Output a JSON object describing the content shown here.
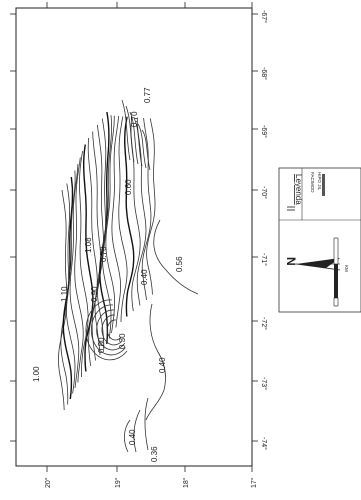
{
  "map": {
    "lon_labels": [
      "-67°",
      "-68°",
      "-69°",
      "-70°",
      "-71°",
      "-72°",
      "-73°",
      "-74°"
    ],
    "lat_labels": [
      "20°",
      "19°",
      "18°",
      "17°"
    ],
    "contour_labels": [
      "0.77",
      "0.70",
      "0.60",
      "1.08",
      "0.70",
      "0.56",
      "0.40",
      "1.10",
      "0.90",
      "0.80",
      "0.30",
      "0.40",
      "1.00",
      "0.40",
      "0.36"
    ]
  },
  "legend": {
    "title": "Leyenda",
    "lines": [
      "FACIMOD",
      "HIPO JIL"
    ]
  },
  "north_arrow": {
    "label": "N"
  },
  "scale_bar": {
    "label": "KM"
  }
}
